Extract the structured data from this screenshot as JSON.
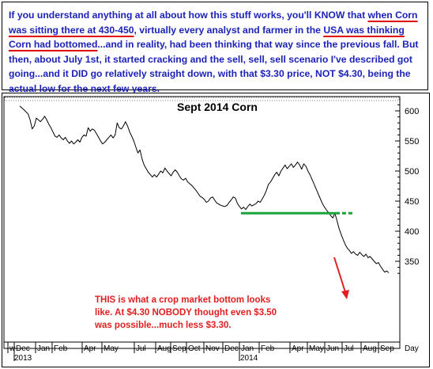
{
  "caption": {
    "parts": [
      {
        "text": "If you understand anything at all about how this stuff works, you'll KNOW that ",
        "underline": false
      },
      {
        "text": "when Corn was sitting there at 430-450",
        "underline": true
      },
      {
        "text": ", virtually every analyst and farmer in the ",
        "underline": false
      },
      {
        "text": "USA was thinking Corn had bottomed",
        "underline": true
      },
      {
        "text": "...and in reality, had been thinking that way since the previous fall. But then, about July 1st, it started cracking and the sell, sell, sell scenario I've described got going...and it DID go relatively straight down, with that $3.30 price, NOT $4.30, being the actual low for the next few years.",
        "underline": false
      }
    ]
  },
  "chart_data": {
    "type": "line",
    "title": "Sept 2014 Corn",
    "xlabel": "",
    "ylabel": "",
    "ylim": [
      320,
      615
    ],
    "yticks": [
      350,
      400,
      450,
      500,
      550,
      600
    ],
    "x_tick_labels": [
      "w",
      "Dec",
      "Jan",
      "Feb",
      "Apr",
      "May",
      "Jul",
      "Aug",
      "Sep",
      "Oct",
      "Nov",
      "Dec",
      "Jan",
      "Feb",
      "Apr",
      "May",
      "Jun",
      "Jul",
      "Aug",
      "Sep"
    ],
    "year_labels": [
      "2013",
      "2014"
    ],
    "axis_right_label": "Day",
    "grid": false,
    "colors": {
      "price": "#000000",
      "support": "#1aa33a",
      "arrow": "#e02020",
      "annotation": "#e02020",
      "title": "#000000"
    },
    "series": [
      {
        "values": [
          [
            0,
            608
          ],
          [
            4,
            602
          ],
          [
            8,
            595
          ],
          [
            10,
            585
          ],
          [
            12,
            570
          ],
          [
            14,
            575
          ],
          [
            16,
            588
          ],
          [
            18,
            585
          ],
          [
            20,
            582
          ],
          [
            22,
            586
          ],
          [
            24,
            591
          ],
          [
            26,
            585
          ],
          [
            28,
            578
          ],
          [
            30,
            572
          ],
          [
            32,
            565
          ],
          [
            34,
            558
          ],
          [
            36,
            556
          ],
          [
            38,
            560
          ],
          [
            40,
            555
          ],
          [
            42,
            552
          ],
          [
            44,
            556
          ],
          [
            46,
            550
          ],
          [
            48,
            546
          ],
          [
            50,
            550
          ],
          [
            52,
            545
          ],
          [
            54,
            548
          ],
          [
            56,
            552
          ],
          [
            58,
            548
          ],
          [
            60,
            556
          ],
          [
            62,
            560
          ],
          [
            64,
            558
          ],
          [
            66,
            572
          ],
          [
            68,
            566
          ],
          [
            70,
            570
          ],
          [
            72,
            568
          ],
          [
            74,
            562
          ],
          [
            76,
            556
          ],
          [
            78,
            550
          ],
          [
            80,
            545
          ],
          [
            82,
            548
          ],
          [
            84,
            552
          ],
          [
            86,
            556
          ],
          [
            88,
            560
          ],
          [
            90,
            555
          ],
          [
            92,
            560
          ],
          [
            94,
            580
          ],
          [
            96,
            572
          ],
          [
            98,
            570
          ],
          [
            100,
            575
          ],
          [
            102,
            582
          ],
          [
            104,
            575
          ],
          [
            106,
            565
          ],
          [
            108,
            558
          ],
          [
            110,
            550
          ],
          [
            112,
            540
          ],
          [
            114,
            530
          ],
          [
            116,
            535
          ],
          [
            118,
            520
          ],
          [
            120,
            510
          ],
          [
            122,
            504
          ],
          [
            124,
            498
          ],
          [
            126,
            494
          ],
          [
            128,
            490
          ],
          [
            130,
            494
          ],
          [
            132,
            490
          ],
          [
            134,
            495
          ],
          [
            136,
            500
          ],
          [
            138,
            497
          ],
          [
            140,
            505
          ],
          [
            142,
            500
          ],
          [
            144,
            496
          ],
          [
            146,
            492
          ],
          [
            148,
            498
          ],
          [
            150,
            502
          ],
          [
            152,
            498
          ],
          [
            154,
            492
          ],
          [
            156,
            487
          ],
          [
            158,
            485
          ],
          [
            160,
            488
          ],
          [
            162,
            482
          ],
          [
            164,
            479
          ],
          [
            166,
            476
          ],
          [
            168,
            472
          ],
          [
            170,
            468
          ],
          [
            172,
            463
          ],
          [
            174,
            458
          ],
          [
            176,
            456
          ],
          [
            178,
            453
          ],
          [
            180,
            448
          ],
          [
            182,
            450
          ],
          [
            184,
            455
          ],
          [
            186,
            457
          ],
          [
            188,
            452
          ],
          [
            190,
            447
          ],
          [
            192,
            445
          ],
          [
            194,
            443
          ],
          [
            196,
            442
          ],
          [
            198,
            441
          ],
          [
            200,
            443
          ],
          [
            202,
            448
          ],
          [
            204,
            452
          ],
          [
            206,
            457
          ],
          [
            208,
            455
          ],
          [
            210,
            446
          ],
          [
            212,
            441
          ],
          [
            214,
            437
          ],
          [
            216,
            440
          ],
          [
            218,
            436
          ],
          [
            220,
            441
          ],
          [
            222,
            445
          ],
          [
            224,
            442
          ],
          [
            226,
            444
          ],
          [
            228,
            446
          ],
          [
            230,
            450
          ],
          [
            232,
            448
          ],
          [
            234,
            454
          ],
          [
            236,
            460
          ],
          [
            238,
            468
          ],
          [
            240,
            478
          ],
          [
            242,
            482
          ],
          [
            244,
            488
          ],
          [
            246,
            494
          ],
          [
            248,
            498
          ],
          [
            250,
            492
          ],
          [
            252,
            500
          ],
          [
            254,
            505
          ],
          [
            256,
            510
          ],
          [
            258,
            504
          ],
          [
            260,
            508
          ],
          [
            262,
            512
          ],
          [
            264,
            506
          ],
          [
            266,
            510
          ],
          [
            268,
            515
          ],
          [
            270,
            510
          ],
          [
            272,
            503
          ],
          [
            274,
            512
          ],
          [
            276,
            508
          ],
          [
            278,
            500
          ],
          [
            280,
            494
          ],
          [
            282,
            486
          ],
          [
            284,
            478
          ],
          [
            286,
            470
          ],
          [
            288,
            462
          ],
          [
            290,
            454
          ],
          [
            292,
            446
          ],
          [
            294,
            440
          ],
          [
            296,
            435
          ],
          [
            298,
            431
          ],
          [
            300,
            426
          ],
          [
            302,
            422
          ],
          [
            304,
            430
          ],
          [
            306,
            418
          ],
          [
            308,
            405
          ],
          [
            310,
            395
          ],
          [
            312,
            386
          ],
          [
            314,
            378
          ],
          [
            316,
            372
          ],
          [
            318,
            368
          ],
          [
            320,
            363
          ],
          [
            322,
            366
          ],
          [
            324,
            362
          ],
          [
            326,
            360
          ],
          [
            328,
            365
          ],
          [
            330,
            361
          ],
          [
            332,
            358
          ],
          [
            334,
            362
          ],
          [
            336,
            356
          ],
          [
            338,
            358
          ],
          [
            340,
            354
          ],
          [
            342,
            350
          ],
          [
            344,
            346
          ],
          [
            346,
            348
          ],
          [
            348,
            342
          ],
          [
            350,
            337
          ],
          [
            352,
            332
          ],
          [
            354,
            334
          ],
          [
            356,
            331
          ]
        ]
      }
    ],
    "support_level": 430,
    "annotation": [
      "THIS is what a crop market bottom looks",
      "like. At $4.30 NOBODY thought even $3.50",
      "was possible...much less $3.30."
    ]
  }
}
